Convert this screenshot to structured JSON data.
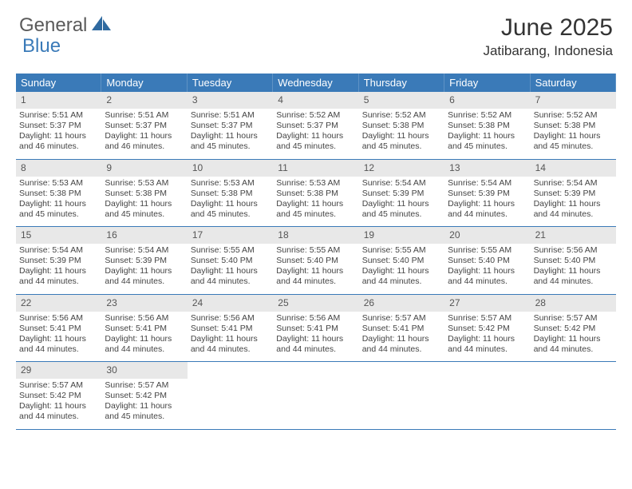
{
  "brand": {
    "part1": "General",
    "part2": "Blue"
  },
  "title": "June 2025",
  "location": "Jatibarang, Indonesia",
  "colors": {
    "header_bg": "#3a7ab8",
    "header_text": "#ffffff",
    "daynum_bg": "#e8e8e8",
    "border": "#3a7ab8",
    "text": "#444444",
    "page_bg": "#ffffff"
  },
  "typography": {
    "body_font": "Arial",
    "title_size_pt": 22,
    "location_size_pt": 13,
    "weekday_size_pt": 10,
    "daytext_size_pt": 8
  },
  "weekdays": [
    "Sunday",
    "Monday",
    "Tuesday",
    "Wednesday",
    "Thursday",
    "Friday",
    "Saturday"
  ],
  "weeks": [
    [
      {
        "n": "1",
        "sunrise": "5:51 AM",
        "sunset": "5:37 PM",
        "dl": "11 hours and 46 minutes."
      },
      {
        "n": "2",
        "sunrise": "5:51 AM",
        "sunset": "5:37 PM",
        "dl": "11 hours and 46 minutes."
      },
      {
        "n": "3",
        "sunrise": "5:51 AM",
        "sunset": "5:37 PM",
        "dl": "11 hours and 45 minutes."
      },
      {
        "n": "4",
        "sunrise": "5:52 AM",
        "sunset": "5:37 PM",
        "dl": "11 hours and 45 minutes."
      },
      {
        "n": "5",
        "sunrise": "5:52 AM",
        "sunset": "5:38 PM",
        "dl": "11 hours and 45 minutes."
      },
      {
        "n": "6",
        "sunrise": "5:52 AM",
        "sunset": "5:38 PM",
        "dl": "11 hours and 45 minutes."
      },
      {
        "n": "7",
        "sunrise": "5:52 AM",
        "sunset": "5:38 PM",
        "dl": "11 hours and 45 minutes."
      }
    ],
    [
      {
        "n": "8",
        "sunrise": "5:53 AM",
        "sunset": "5:38 PM",
        "dl": "11 hours and 45 minutes."
      },
      {
        "n": "9",
        "sunrise": "5:53 AM",
        "sunset": "5:38 PM",
        "dl": "11 hours and 45 minutes."
      },
      {
        "n": "10",
        "sunrise": "5:53 AM",
        "sunset": "5:38 PM",
        "dl": "11 hours and 45 minutes."
      },
      {
        "n": "11",
        "sunrise": "5:53 AM",
        "sunset": "5:38 PM",
        "dl": "11 hours and 45 minutes."
      },
      {
        "n": "12",
        "sunrise": "5:54 AM",
        "sunset": "5:39 PM",
        "dl": "11 hours and 45 minutes."
      },
      {
        "n": "13",
        "sunrise": "5:54 AM",
        "sunset": "5:39 PM",
        "dl": "11 hours and 44 minutes."
      },
      {
        "n": "14",
        "sunrise": "5:54 AM",
        "sunset": "5:39 PM",
        "dl": "11 hours and 44 minutes."
      }
    ],
    [
      {
        "n": "15",
        "sunrise": "5:54 AM",
        "sunset": "5:39 PM",
        "dl": "11 hours and 44 minutes."
      },
      {
        "n": "16",
        "sunrise": "5:54 AM",
        "sunset": "5:39 PM",
        "dl": "11 hours and 44 minutes."
      },
      {
        "n": "17",
        "sunrise": "5:55 AM",
        "sunset": "5:40 PM",
        "dl": "11 hours and 44 minutes."
      },
      {
        "n": "18",
        "sunrise": "5:55 AM",
        "sunset": "5:40 PM",
        "dl": "11 hours and 44 minutes."
      },
      {
        "n": "19",
        "sunrise": "5:55 AM",
        "sunset": "5:40 PM",
        "dl": "11 hours and 44 minutes."
      },
      {
        "n": "20",
        "sunrise": "5:55 AM",
        "sunset": "5:40 PM",
        "dl": "11 hours and 44 minutes."
      },
      {
        "n": "21",
        "sunrise": "5:56 AM",
        "sunset": "5:40 PM",
        "dl": "11 hours and 44 minutes."
      }
    ],
    [
      {
        "n": "22",
        "sunrise": "5:56 AM",
        "sunset": "5:41 PM",
        "dl": "11 hours and 44 minutes."
      },
      {
        "n": "23",
        "sunrise": "5:56 AM",
        "sunset": "5:41 PM",
        "dl": "11 hours and 44 minutes."
      },
      {
        "n": "24",
        "sunrise": "5:56 AM",
        "sunset": "5:41 PM",
        "dl": "11 hours and 44 minutes."
      },
      {
        "n": "25",
        "sunrise": "5:56 AM",
        "sunset": "5:41 PM",
        "dl": "11 hours and 44 minutes."
      },
      {
        "n": "26",
        "sunrise": "5:57 AM",
        "sunset": "5:41 PM",
        "dl": "11 hours and 44 minutes."
      },
      {
        "n": "27",
        "sunrise": "5:57 AM",
        "sunset": "5:42 PM",
        "dl": "11 hours and 44 minutes."
      },
      {
        "n": "28",
        "sunrise": "5:57 AM",
        "sunset": "5:42 PM",
        "dl": "11 hours and 44 minutes."
      }
    ],
    [
      {
        "n": "29",
        "sunrise": "5:57 AM",
        "sunset": "5:42 PM",
        "dl": "11 hours and 44 minutes."
      },
      {
        "n": "30",
        "sunrise": "5:57 AM",
        "sunset": "5:42 PM",
        "dl": "11 hours and 45 minutes."
      },
      null,
      null,
      null,
      null,
      null
    ]
  ],
  "labels": {
    "sunrise": "Sunrise: ",
    "sunset": "Sunset: ",
    "daylight": "Daylight: "
  }
}
